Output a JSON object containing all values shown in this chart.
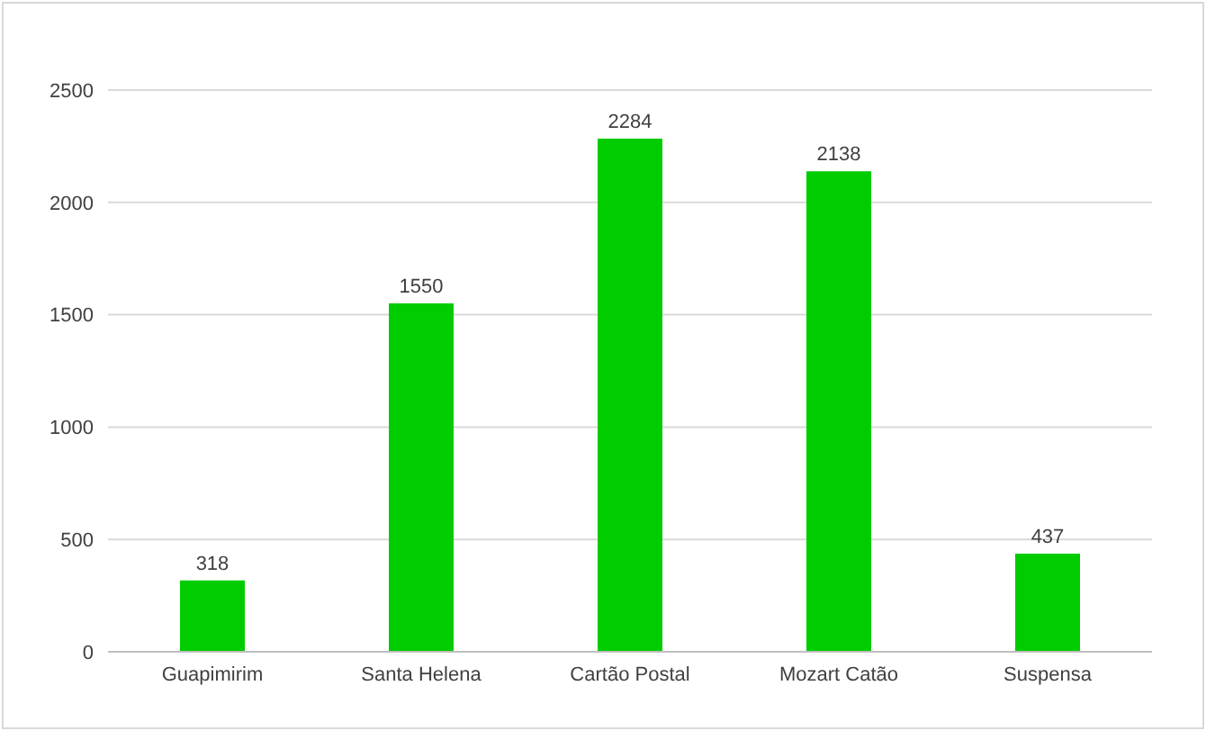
{
  "chart_data": {
    "type": "bar",
    "categories": [
      "Guapimirim",
      "Santa Helena",
      "Cartão Postal",
      "Mozart Catão",
      "Suspensa"
    ],
    "values": [
      318,
      1550,
      2284,
      2138,
      437
    ],
    "color": "#00cc00",
    "ylim": [
      0,
      2500
    ],
    "yticks": [
      0,
      500,
      1000,
      1500,
      2000,
      2500
    ],
    "grid": "y",
    "data_labels": true,
    "legend": false
  }
}
